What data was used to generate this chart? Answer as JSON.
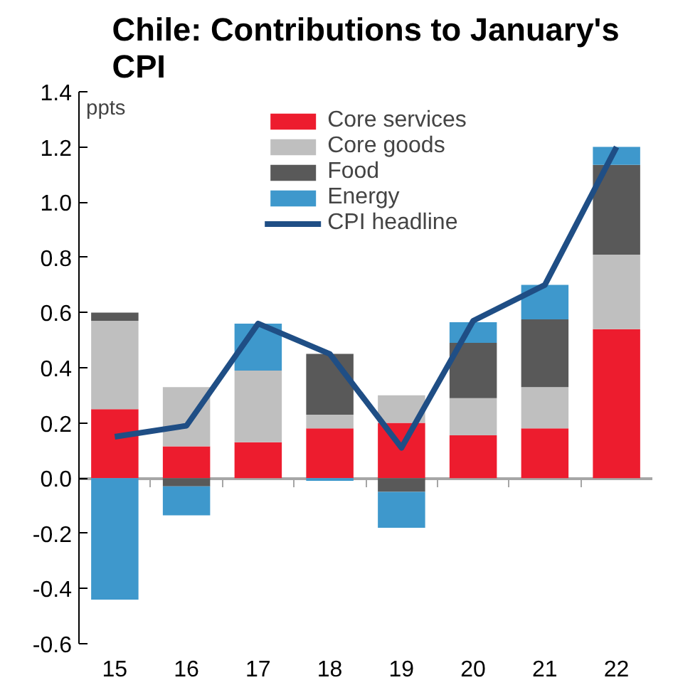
{
  "chart_data": {
    "type": "bar",
    "title": "Chile: Contributions to January's CPI",
    "stacked": true,
    "categories": [
      "15",
      "16",
      "17",
      "18",
      "19",
      "20",
      "21",
      "22"
    ],
    "series": [
      {
        "name": "Core services",
        "color": "#ed1c2e",
        "values": [
          0.25,
          0.115,
          0.13,
          0.18,
          0.2,
          0.155,
          0.18,
          0.54
        ]
      },
      {
        "name": "Core goods",
        "color": "#bfbfbf",
        "values": [
          0.32,
          0.215,
          0.26,
          0.05,
          0.1,
          0.135,
          0.15,
          0.27
        ]
      },
      {
        "name": "Food",
        "color": "#595959",
        "values": [
          0.03,
          -0.03,
          0,
          0.22,
          -0.05,
          0.2,
          0.245,
          0.325
        ]
      },
      {
        "name": "Energy",
        "color": "#3e98cc",
        "values": [
          -0.44,
          -0.105,
          0.17,
          -0.01,
          -0.13,
          0.075,
          0.125,
          0.065
        ]
      },
      {
        "name": "CPI headline",
        "type": "line",
        "color": "#1f4e85",
        "values": [
          0.15,
          0.19,
          0.56,
          0.45,
          0.11,
          0.57,
          0.7,
          1.2
        ]
      }
    ],
    "ylim": [
      -0.6,
      1.4
    ],
    "yticks": [
      {
        "value": -0.6,
        "label": "-0.6"
      },
      {
        "value": -0.4,
        "label": "-0.4"
      },
      {
        "value": -0.2,
        "label": "-0.2"
      },
      {
        "value": 0,
        "label": "0.0"
      },
      0.2,
      0.4,
      0.6,
      0.8,
      {
        "value": 1,
        "label": "1.0"
      },
      1.2,
      1.4
    ],
    "annotations": [
      "ppts"
    ],
    "legend": "top"
  }
}
